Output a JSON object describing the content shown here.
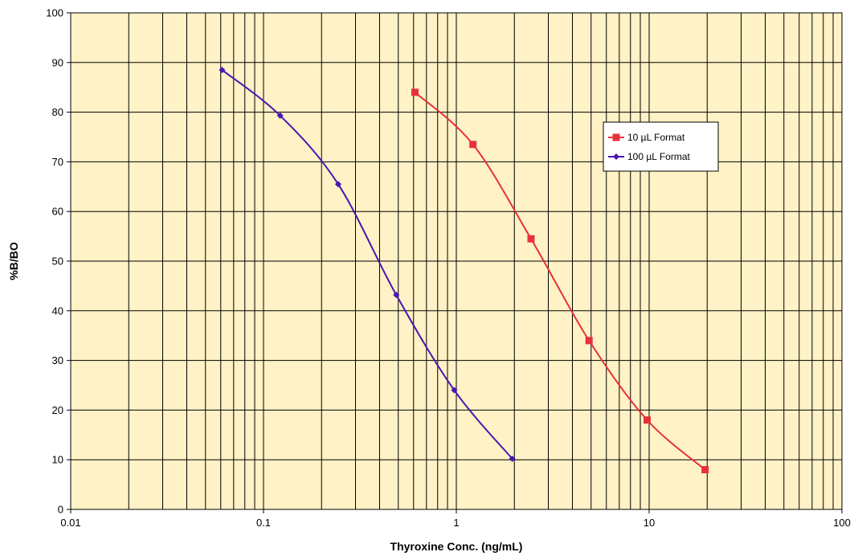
{
  "chart_data": {
    "type": "line",
    "title": "",
    "xlabel": "Thyroxine Conc. (ng/mL)",
    "ylabel": "%B/BO",
    "x_scale": "log",
    "xlim": [
      0.01,
      100
    ],
    "ylim": [
      0,
      100
    ],
    "x_ticks": [
      0.01,
      0.1,
      1,
      10,
      100
    ],
    "x_tick_labels": [
      "0.01",
      "0.1",
      "1",
      "10",
      "100"
    ],
    "y_ticks": [
      0,
      10,
      20,
      30,
      40,
      50,
      60,
      70,
      80,
      90,
      100
    ],
    "y_tick_labels": [
      "0",
      "10",
      "20",
      "30",
      "40",
      "50",
      "60",
      "70",
      "80",
      "90",
      "100"
    ],
    "grid": true,
    "plot_background": "#fff2c6",
    "legend_position": "right",
    "series": [
      {
        "name": "10 µL Format",
        "color": "#e8313a",
        "marker": "square",
        "x": [
          0.61,
          1.22,
          2.44,
          4.88,
          9.76,
          19.5
        ],
        "y": [
          84,
          73.5,
          54.5,
          34,
          18,
          8
        ]
      },
      {
        "name": "100 µL Format",
        "color": "#4a16b0",
        "marker": "diamond",
        "x": [
          0.061,
          0.122,
          0.244,
          0.488,
          0.976,
          1.95
        ],
        "y": [
          88.5,
          79.3,
          65.5,
          43.2,
          24,
          10.2
        ]
      }
    ]
  }
}
